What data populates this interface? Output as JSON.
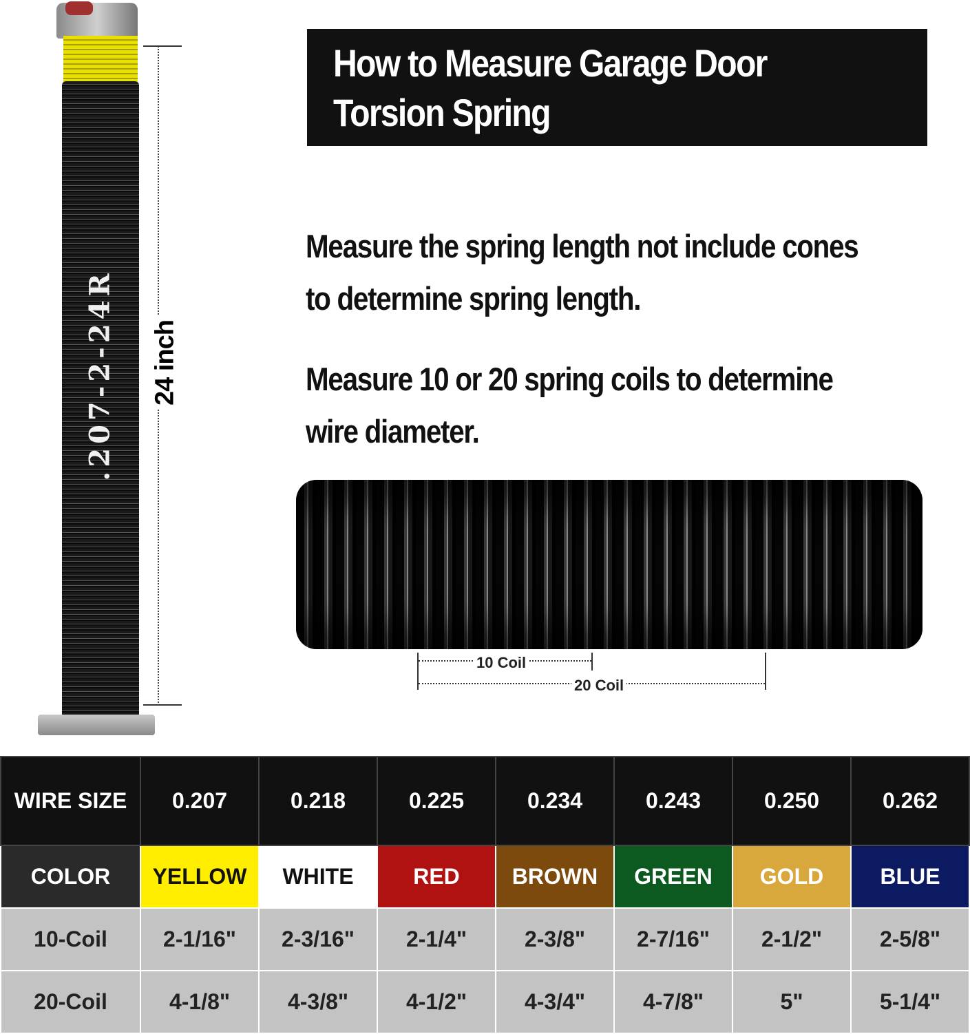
{
  "spring": {
    "code": ".207-2-24R",
    "length_label": "24 inch"
  },
  "title": {
    "line1": "How to Measure Garage Door",
    "line2": "Torsion Spring"
  },
  "instructions": [
    {
      "line1": "Measure the spring length not include cones",
      "line2": "to determine spring length."
    },
    {
      "line1": "Measure 10 or 20 spring coils to determine",
      "line2": "wire diameter."
    }
  ],
  "coil_labels": {
    "ten": "10 Coil",
    "twenty": "20 Coil"
  },
  "table": {
    "headers": [
      "WIRE SIZE",
      "0.207",
      "0.218",
      "0.225",
      "0.234",
      "0.243",
      "0.250",
      "0.262"
    ],
    "color_row": {
      "label": "COLOR",
      "values": [
        "YELLOW",
        "WHITE",
        "RED",
        "BROWN",
        "GREEN",
        "GOLD",
        "BLUE"
      ],
      "bg": [
        "#ffee00",
        "#ffffff",
        "#b01212",
        "#7b4a0c",
        "#0c5a20",
        "#d9a83c",
        "#0c1a62"
      ],
      "fg": [
        "#111111",
        "#111111",
        "#ffffff",
        "#ffffff",
        "#ffffff",
        "#ffffff",
        "#ffffff"
      ]
    },
    "rows": [
      {
        "label": "10-Coil",
        "values": [
          "2-1/16\"",
          "2-3/16\"",
          "2-1/4\"",
          "2-3/8\"",
          "2-7/16\"",
          "2-1/2\"",
          "2-5/8\""
        ]
      },
      {
        "label": "20-Coil",
        "values": [
          "4-1/8\"",
          "4-3/8\"",
          "4-1/2\"",
          "4-3/4\"",
          "4-7/8\"",
          "5\"",
          "5-1/4\""
        ]
      }
    ]
  }
}
